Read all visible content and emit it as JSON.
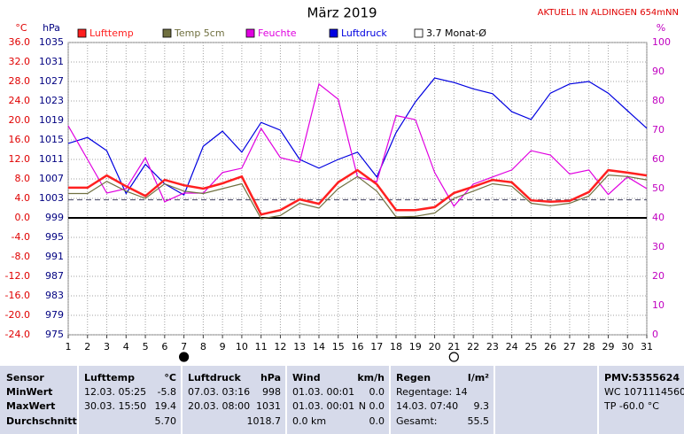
{
  "chart_data": {
    "type": "line",
    "title": "März 2019",
    "subtitle": "AKTUELL IN ALDINGEN 654mNN",
    "y_unit": "°C",
    "y2_unit": "hPa",
    "y3_unit": "%",
    "x": [
      1,
      2,
      3,
      4,
      5,
      6,
      7,
      8,
      9,
      10,
      11,
      12,
      13,
      14,
      15,
      16,
      17,
      18,
      19,
      20,
      21,
      22,
      23,
      24,
      25,
      26,
      27,
      28,
      29,
      30,
      31
    ],
    "xlim": [
      1,
      31
    ],
    "xticks": [
      1,
      2,
      3,
      4,
      5,
      6,
      7,
      8,
      9,
      10,
      11,
      12,
      13,
      14,
      15,
      16,
      17,
      18,
      19,
      20,
      21,
      22,
      23,
      24,
      25,
      26,
      27,
      28,
      29,
      30,
      31
    ],
    "ylim": [
      -24,
      36
    ],
    "yticks": [
      {
        "value": 36,
        "label": "36.0"
      },
      {
        "value": 32,
        "label": "32.0"
      },
      {
        "value": 28,
        "label": "28.0"
      },
      {
        "value": 24,
        "label": "24.0"
      },
      {
        "value": 20,
        "label": "20.0"
      },
      {
        "value": 16,
        "label": "16.0"
      },
      {
        "value": 12,
        "label": "12.0"
      },
      {
        "value": 8,
        "label": "8.0"
      },
      {
        "value": 4,
        "label": "4.0"
      },
      {
        "value": 0,
        "label": "0.0"
      },
      {
        "value": -4,
        "label": "-4.0"
      },
      {
        "value": -8,
        "label": "-8.0"
      },
      {
        "value": -12,
        "label": "-12.0"
      },
      {
        "value": -16,
        "label": "-16.0"
      },
      {
        "value": -20,
        "label": "-20.0"
      },
      {
        "value": -24,
        "label": "-24.0"
      }
    ],
    "y2lim": [
      975,
      1035
    ],
    "y2ticks": [
      1035,
      1031,
      1027,
      1023,
      1019,
      1015,
      1011,
      1007,
      1003,
      999,
      995,
      991,
      987,
      983,
      979,
      975
    ],
    "y3lim": [
      0,
      100
    ],
    "y3ticks": [
      100,
      90,
      80,
      70,
      60,
      50,
      40,
      30,
      20,
      10,
      0
    ],
    "grid": true,
    "series": [
      {
        "name": "Lufttemp",
        "color": "#ff2020",
        "axis": "y",
        "values": [
          6.2,
          6.2,
          8.7,
          6.5,
          4.5,
          7.8,
          6.7,
          6.0,
          7.1,
          8.5,
          0.7,
          1.6,
          3.8,
          2.9,
          7.3,
          9.8,
          6.9,
          1.6,
          1.6,
          2.2,
          5.1,
          6.4,
          7.8,
          7.3,
          3.6,
          3.3,
          3.5,
          5.3,
          9.8,
          9.3,
          8.7
        ]
      },
      {
        "name": "Temp 5cm",
        "color": "#707040",
        "axis": "y",
        "values": [
          5.0,
          5.0,
          7.5,
          5.5,
          4.0,
          7.0,
          5.5,
          5.0,
          6.0,
          7.0,
          -0.2,
          0.5,
          3.0,
          2.0,
          6.0,
          8.5,
          5.5,
          0.2,
          0.3,
          1.0,
          4.0,
          5.5,
          7.0,
          6.5,
          3.0,
          2.5,
          3.0,
          4.5,
          8.8,
          8.5,
          7.8
        ]
      },
      {
        "name": "Feuchte",
        "color": "#e000e0",
        "axis": "y3",
        "values": [
          71.5,
          60,
          48.5,
          50,
          60.6,
          45.5,
          48.5,
          48.5,
          55.5,
          57,
          70.6,
          60.6,
          59,
          85.8,
          80.6,
          54,
          52.4,
          75,
          73.6,
          55.5,
          44,
          51.5,
          54,
          56.4,
          63,
          61.5,
          55,
          56.4,
          48,
          54,
          50
        ]
      },
      {
        "name": "Luftdruck",
        "color": "#0000e0",
        "axis": "y2",
        "values": [
          1014.3,
          1015.5,
          1012.8,
          1004,
          1010,
          1006,
          1003.7,
          1013.7,
          1016.8,
          1012.5,
          1018.6,
          1017,
          1011,
          1009.2,
          1011,
          1012.5,
          1007.4,
          1016.5,
          1022.8,
          1027.7,
          1026.8,
          1025.5,
          1024.5,
          1020.8,
          1019.2,
          1024.6,
          1026.5,
          1027,
          1024.6,
          1021,
          1017.4
        ]
      }
    ],
    "reference_line": {
      "name": "3.7 Monat-Ø",
      "value": 3.7,
      "color": "#404060"
    },
    "moon_phases": [
      {
        "x": 7,
        "fill": "#000000"
      },
      {
        "x": 21,
        "fill": "none"
      }
    ]
  },
  "table": {
    "header": [
      {
        "left": "Sensor"
      },
      {
        "left": "Lufttemp",
        "right": "°C"
      },
      {
        "left": "Luftdruck",
        "right": "hPa"
      },
      {
        "left": "Wind",
        "right": "km/h"
      },
      {
        "left": "Regen",
        "right": "l/m²"
      },
      {},
      {
        "left": "PMV:5355624"
      }
    ],
    "rows": [
      [
        {
          "left": "MinWert"
        },
        {
          "left": "12.03.  05:25",
          "right": "-5.8"
        },
        {
          "left": "07.03.  03:16",
          "right": "998"
        },
        {
          "left": "01.03.  00:01",
          "right": "0.0"
        },
        {
          "left": "Regentage: 14"
        },
        {},
        {
          "left": "WC 1071114560"
        }
      ],
      [
        {
          "left": "MaxWert"
        },
        {
          "left": "30.03.  15:50",
          "right": "19.4"
        },
        {
          "left": "20.03.  08:00",
          "right": "1031"
        },
        {
          "left": "01.03.  00:01",
          "right": "N 0.0"
        },
        {
          "left": "14.03.  07:40",
          "right": "9.3"
        },
        {},
        {
          "left": "TP -60.0 °C"
        }
      ],
      [
        {
          "left": "Durchschnitt"
        },
        {
          "right": "5.70"
        },
        {
          "right": "1018.7"
        },
        {
          "left": "0.0 km",
          "right": "0.0"
        },
        {
          "left": "Gesamt:",
          "right": "55.5"
        },
        {},
        {}
      ]
    ]
  }
}
